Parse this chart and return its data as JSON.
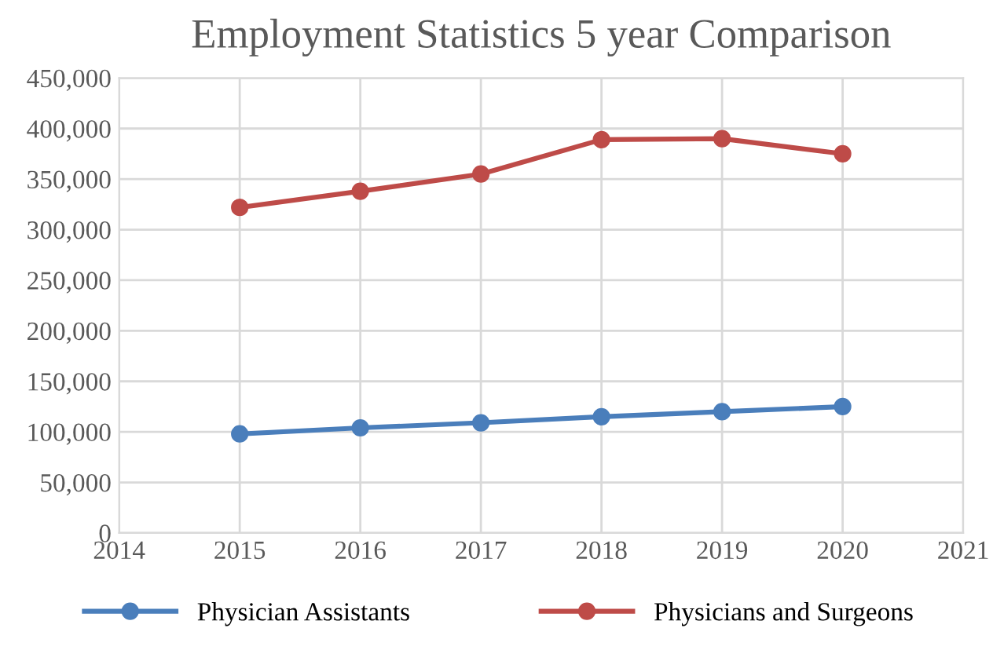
{
  "chart_data": {
    "type": "line",
    "title": "Employment Statistics 5 year Comparison",
    "x": [
      2015,
      2016,
      2017,
      2018,
      2019,
      2020
    ],
    "series": [
      {
        "name": "Physician Assistants",
        "color": "#4a7ebb",
        "values": [
          98000,
          104000,
          109000,
          115000,
          120000,
          125000
        ]
      },
      {
        "name": "Physicians and Surgeons",
        "color": "#be4b48",
        "values": [
          322000,
          338000,
          355000,
          389000,
          390000,
          375000
        ]
      }
    ],
    "xlim": [
      2014,
      2021
    ],
    "xticks": [
      2014,
      2015,
      2016,
      2017,
      2018,
      2019,
      2020,
      2021
    ],
    "ylim": [
      0,
      450000
    ],
    "yticks": [
      {
        "value": 0,
        "label": "0"
      },
      {
        "value": 50000,
        "label": "50,000"
      },
      {
        "value": 100000,
        "label": "100,000"
      },
      {
        "value": 150000,
        "label": "150,000"
      },
      {
        "value": 200000,
        "label": "200,000"
      },
      {
        "value": 250000,
        "label": "250,000"
      },
      {
        "value": 300000,
        "label": "300,000"
      },
      {
        "value": 350000,
        "label": "350,000"
      },
      {
        "value": 400000,
        "label": "400,000"
      },
      {
        "value": 450000,
        "label": "450,000"
      }
    ],
    "grid": true,
    "legend": "bottom",
    "marker": "circle",
    "line_style": "solid"
  }
}
